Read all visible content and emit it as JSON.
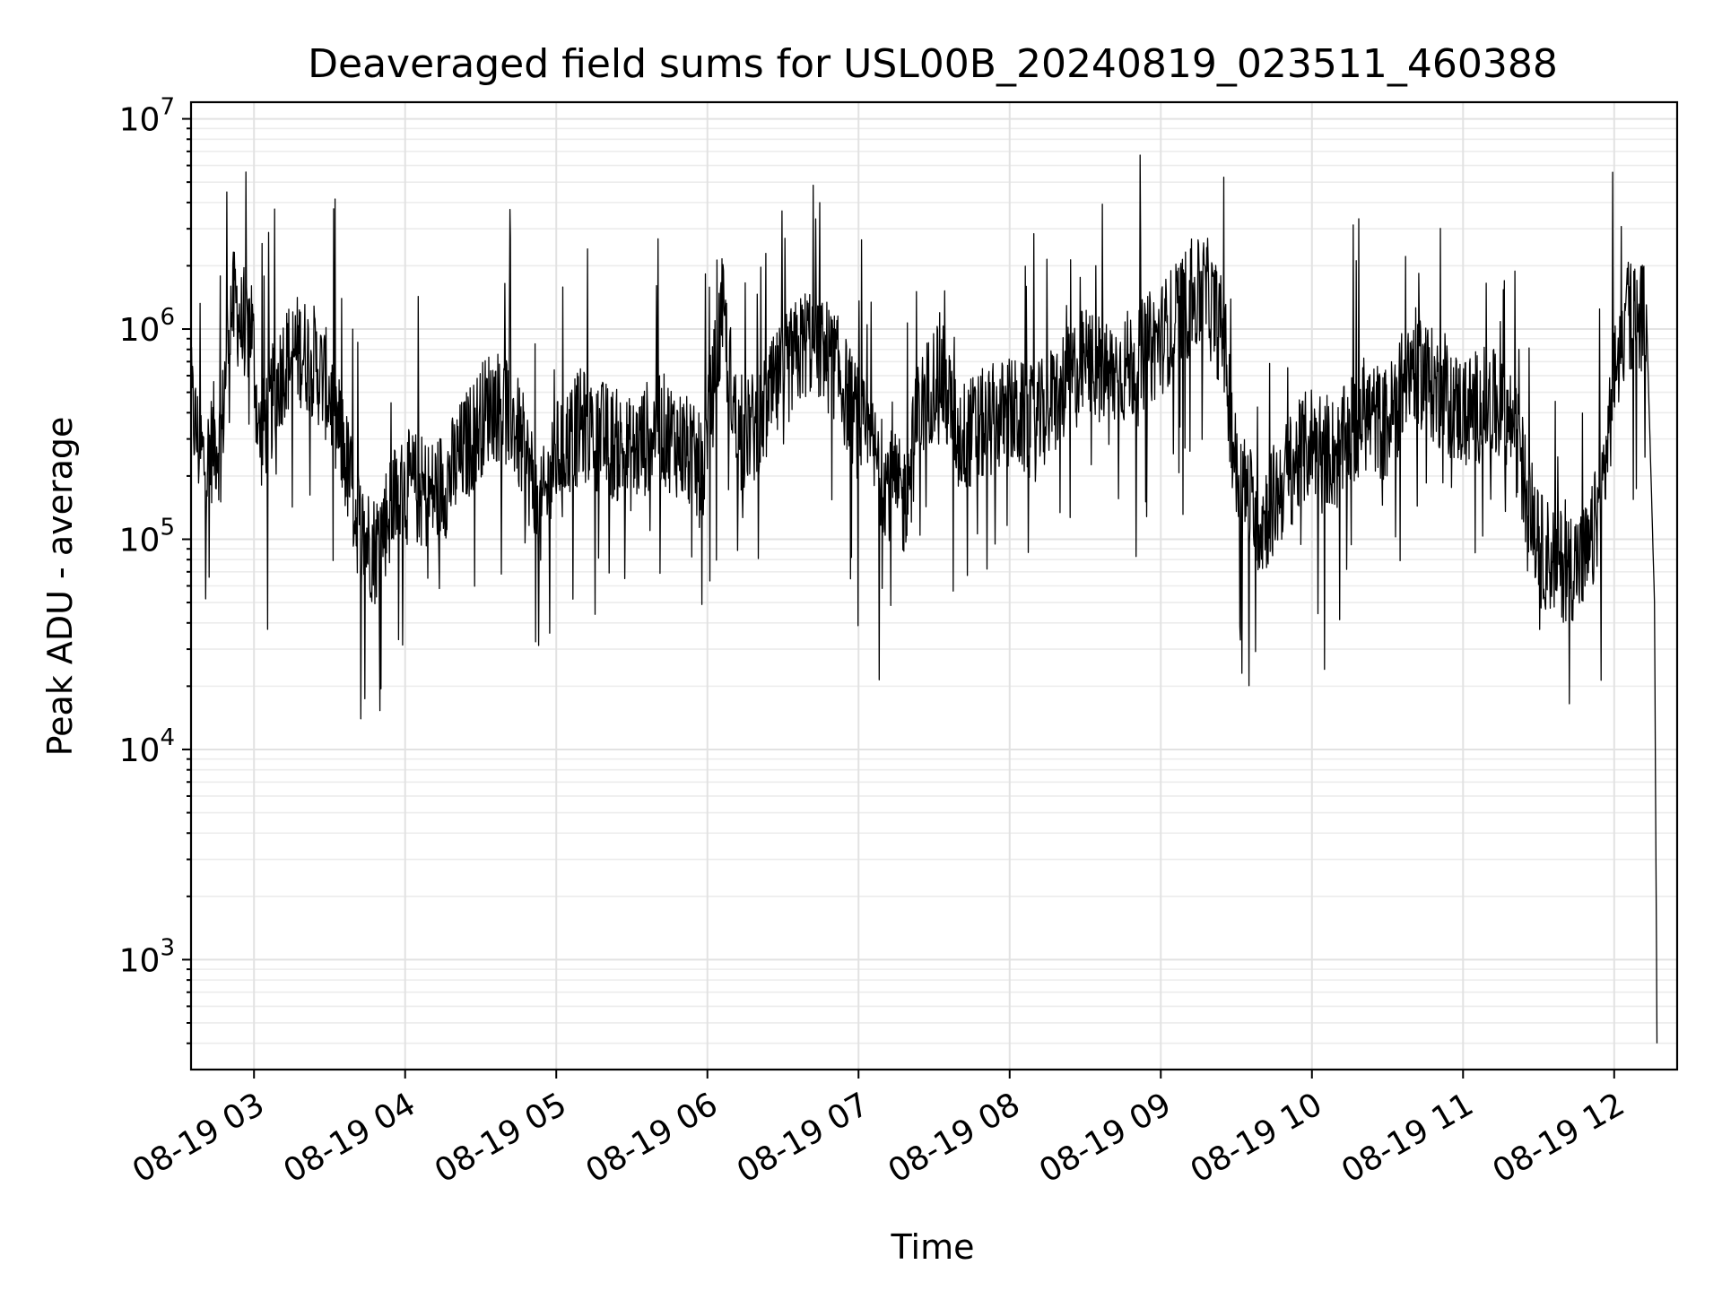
{
  "chart_data": {
    "type": "line",
    "title": "Deaveraged field sums for USL00B_20240819_023511_460388",
    "xlabel": "Time",
    "ylabel": "Peak ADU - average",
    "yscale": "log",
    "ylim": [
      300,
      12000000
    ],
    "xlim": [
      "2024-08-19 02:35",
      "2024-08-19 12:25"
    ],
    "grid": true,
    "legend": "none",
    "line_color": "#000000",
    "x_ticks": [
      {
        "value": "2024-08-19 03:00",
        "label": "08-19 03"
      },
      {
        "value": "2024-08-19 04:00",
        "label": "08-19 04"
      },
      {
        "value": "2024-08-19 05:00",
        "label": "08-19 05"
      },
      {
        "value": "2024-08-19 06:00",
        "label": "08-19 06"
      },
      {
        "value": "2024-08-19 07:00",
        "label": "08-19 07"
      },
      {
        "value": "2024-08-19 08:00",
        "label": "08-19 08"
      },
      {
        "value": "2024-08-19 09:00",
        "label": "08-19 09"
      },
      {
        "value": "2024-08-19 10:00",
        "label": "08-19 10"
      },
      {
        "value": "2024-08-19 11:00",
        "label": "08-19 11"
      },
      {
        "value": "2024-08-19 12:00",
        "label": "08-19 12"
      }
    ],
    "y_ticks": [
      {
        "value": 1000,
        "base": "10",
        "exp": "3"
      },
      {
        "value": 10000,
        "base": "10",
        "exp": "4"
      },
      {
        "value": 100000,
        "base": "10",
        "exp": "5"
      },
      {
        "value": 1000000,
        "base": "10",
        "exp": "6"
      },
      {
        "value": 10000000,
        "base": "10",
        "exp": "7"
      }
    ],
    "series": [
      {
        "x": [
          "2024-08-19 02:35",
          "2024-08-19 02:38",
          "2024-08-19 02:41",
          "2024-08-19 02:44",
          "2024-08-19 02:47",
          "2024-08-19 02:50",
          "2024-08-19 02:53",
          "2024-08-19 02:56",
          "2024-08-19 02:59",
          "2024-08-19 03:02",
          "2024-08-19 03:06",
          "2024-08-19 03:12",
          "2024-08-19 03:18",
          "2024-08-19 03:24",
          "2024-08-19 03:30",
          "2024-08-19 03:36",
          "2024-08-19 03:42",
          "2024-08-19 03:48",
          "2024-08-19 03:55",
          "2024-08-19 04:02",
          "2024-08-19 04:10",
          "2024-08-19 04:18",
          "2024-08-19 04:26",
          "2024-08-19 04:34",
          "2024-08-19 04:42",
          "2024-08-19 04:50",
          "2024-08-19 04:53",
          "2024-08-19 05:00",
          "2024-08-19 05:10",
          "2024-08-19 05:20",
          "2024-08-19 05:30",
          "2024-08-19 05:40",
          "2024-08-19 05:50",
          "2024-08-19 05:58",
          "2024-08-19 06:06",
          "2024-08-19 06:12",
          "2024-08-19 06:20",
          "2024-08-19 06:30",
          "2024-08-19 06:40",
          "2024-08-19 06:50",
          "2024-08-19 07:00",
          "2024-08-19 07:10",
          "2024-08-19 07:18",
          "2024-08-19 07:24",
          "2024-08-19 07:32",
          "2024-08-19 07:40",
          "2024-08-19 07:50",
          "2024-08-19 08:00",
          "2024-08-19 08:10",
          "2024-08-19 08:20",
          "2024-08-19 08:30",
          "2024-08-19 08:40",
          "2024-08-19 08:50",
          "2024-08-19 09:00",
          "2024-08-19 09:10",
          "2024-08-19 09:18",
          "2024-08-19 09:25",
          "2024-08-19 09:30",
          "2024-08-19 09:40",
          "2024-08-19 09:50",
          "2024-08-19 10:00",
          "2024-08-19 10:10",
          "2024-08-19 10:20",
          "2024-08-19 10:30",
          "2024-08-19 10:40",
          "2024-08-19 10:50",
          "2024-08-19 11:00",
          "2024-08-19 11:10",
          "2024-08-19 11:20",
          "2024-08-19 11:30",
          "2024-08-19 11:40",
          "2024-08-19 11:50",
          "2024-08-19 11:56",
          "2024-08-19 12:00",
          "2024-08-19 12:05",
          "2024-08-19 12:10",
          "2024-08-19 12:13",
          "2024-08-19 12:16",
          "2024-08-19 12:17"
        ],
        "y": [
          450000,
          280000,
          220000,
          300000,
          280000,
          1200000,
          1300000,
          900000,
          1100000,
          300000,
          400000,
          700000,
          800000,
          700000,
          500000,
          250000,
          110000,
          90000,
          150000,
          180000,
          160000,
          200000,
          300000,
          450000,
          400000,
          200000,
          120000,
          250000,
          350000,
          300000,
          250000,
          350000,
          280000,
          200000,
          1200000,
          300000,
          350000,
          600000,
          900000,
          700000,
          350000,
          200000,
          150000,
          400000,
          650000,
          300000,
          350000,
          400000,
          350000,
          500000,
          700000,
          600000,
          700000,
          900000,
          1300000,
          1500000,
          900000,
          200000,
          120000,
          200000,
          300000,
          250000,
          400000,
          350000,
          700000,
          500000,
          400000,
          450000,
          350000,
          90000,
          75000,
          80000,
          200000,
          600000,
          1150000,
          1250000,
          1000000,
          50000,
          400
        ]
      }
    ]
  }
}
